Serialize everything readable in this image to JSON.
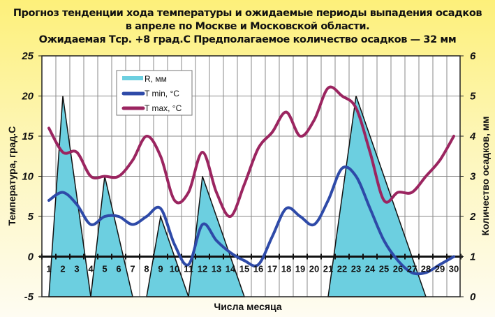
{
  "title": {
    "line1": "Прогноз тенденции хода температуры и ожидаемые периоды выпадения осадков",
    "line2": "в апреле по Москве и Московской области.",
    "line3": "Ожидаемая Тср. +8 град.С Предполагаемое количество осадков — 32 мм"
  },
  "axes": {
    "xlabel": "Числа месяца",
    "ylabel_left": "Температура, град.С",
    "ylabel_right": "Количество осадков, мм",
    "left_ticks": [
      "25",
      "20",
      "15",
      "10",
      "5",
      "0",
      "-5"
    ],
    "right_ticks": [
      "6",
      "5",
      "4",
      "3",
      "2",
      "1",
      "0"
    ]
  },
  "legend": {
    "items": [
      {
        "label": "R, мм",
        "color": "#6ccfe0"
      },
      {
        "label": "T min, °C",
        "color": "#2e4aa8"
      },
      {
        "label": "T max, °C",
        "color": "#9b2560"
      }
    ]
  },
  "colors": {
    "precip_fill": "#6ccfe0",
    "tmin": "#2e4aa8",
    "tmax": "#9b2560",
    "grid": "#8a8a8a",
    "axis": "#111111"
  },
  "chart_data": {
    "type": "line",
    "title": "Прогноз тенденции хода температуры и ожидаемые периоды выпадения осадков в апреле по Москве и Московской области. Ожидаемая Тср. +8 град.С Предполагаемое количество осадков — 32 мм",
    "xlabel": "Числа месяца",
    "ylabel": "Температура, град.С",
    "ylabel_right": "Количество осадков, мм",
    "x": [
      1,
      2,
      3,
      4,
      5,
      6,
      7,
      8,
      9,
      10,
      11,
      12,
      13,
      14,
      15,
      16,
      17,
      18,
      19,
      20,
      21,
      22,
      23,
      24,
      25,
      26,
      27,
      28,
      29,
      30
    ],
    "ylim": [
      -5,
      25
    ],
    "ylim_right": [
      0,
      6
    ],
    "grid": true,
    "legend_position": "upper-left-inside",
    "series": [
      {
        "name": "T min, °C",
        "axis": "left",
        "values": [
          7,
          8,
          6.5,
          4,
          5,
          5,
          4,
          5,
          6,
          1.5,
          -1,
          4,
          2,
          0.5,
          -0.5,
          -1,
          2.5,
          6,
          5,
          4,
          7,
          11,
          10,
          6,
          2,
          -0.5,
          -2,
          -2,
          -1,
          0
        ]
      },
      {
        "name": "T max, °C",
        "axis": "left",
        "values": [
          16,
          13,
          13,
          10,
          10,
          10,
          12,
          15,
          12.5,
          7,
          8,
          13,
          8,
          5,
          9,
          13.5,
          15.5,
          18,
          15,
          17,
          21,
          20,
          18.5,
          13,
          7,
          8,
          8,
          10,
          12,
          15
        ]
      },
      {
        "name": "R, мм",
        "axis": "right",
        "type": "area",
        "peaks": [
          {
            "day": 2,
            "value": 5,
            "from_day": 1,
            "to_day": 4
          },
          {
            "day": 5,
            "value": 3,
            "from_day": 4,
            "to_day": 7
          },
          {
            "day": 9,
            "value": 2,
            "from_day": 8,
            "to_day": 11
          },
          {
            "day": 12,
            "value": 3,
            "from_day": 11,
            "to_day": 15
          },
          {
            "day": 23,
            "value": 5,
            "from_day": 21,
            "to_day": 28
          }
        ]
      }
    ]
  }
}
